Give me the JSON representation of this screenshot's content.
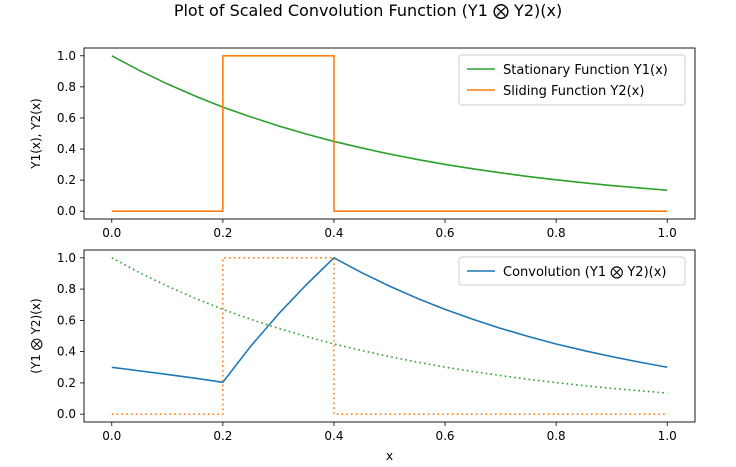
{
  "figure": {
    "title": "Plot of Scaled Convolution Function (Y1 ⨂ Y2)(x)"
  },
  "colors": {
    "stationary": "#2ca02c",
    "sliding": "#ff7f0e",
    "convolution": "#1f77b4"
  },
  "chart_data": [
    {
      "type": "line",
      "title": "",
      "xlabel": "",
      "ylabel": "Y1(x), Y2(x)",
      "xlim": [
        -0.05,
        1.05
      ],
      "ylim": [
        -0.05,
        1.05
      ],
      "xticks": [
        "0.0",
        "0.2",
        "0.4",
        "0.6",
        "0.8",
        "1.0"
      ],
      "yticks": [
        "0.0",
        "0.2",
        "0.4",
        "0.6",
        "0.8",
        "1.0"
      ],
      "legend_position": "top-right",
      "x": [
        0.0,
        0.05,
        0.1,
        0.15,
        0.2,
        0.25,
        0.3,
        0.35,
        0.4,
        0.45,
        0.5,
        0.55,
        0.6,
        0.65,
        0.7,
        0.75,
        0.8,
        0.85,
        0.9,
        0.95,
        1.0
      ],
      "series": [
        {
          "name": "Stationary Function Y1(x)",
          "color": "#2ca02c",
          "style": "solid",
          "values": [
            1.0,
            0.905,
            0.819,
            0.741,
            0.67,
            0.607,
            0.549,
            0.497,
            0.449,
            0.407,
            0.368,
            0.333,
            0.301,
            0.273,
            0.247,
            0.223,
            0.202,
            0.183,
            0.165,
            0.15,
            0.135
          ]
        },
        {
          "name": "Sliding Function Y2(x)",
          "color": "#ff7f0e",
          "style": "solid",
          "step_points": [
            [
              0.0,
              0.0
            ],
            [
              0.2,
              0.0
            ],
            [
              0.2,
              1.0
            ],
            [
              0.4,
              1.0
            ],
            [
              0.4,
              0.0
            ],
            [
              1.0,
              0.0
            ]
          ]
        }
      ]
    },
    {
      "type": "line",
      "title": "",
      "xlabel": "x",
      "ylabel": "(Y1 ⨂ Y2)(x)",
      "xlim": [
        -0.05,
        1.05
      ],
      "ylim": [
        -0.05,
        1.05
      ],
      "xticks": [
        "0.0",
        "0.2",
        "0.4",
        "0.6",
        "0.8",
        "1.0"
      ],
      "yticks": [
        "0.0",
        "0.2",
        "0.4",
        "0.6",
        "0.8",
        "1.0"
      ],
      "legend_position": "top-right",
      "x": [
        0.0,
        0.05,
        0.1,
        0.15,
        0.2,
        0.25,
        0.3,
        0.35,
        0.4,
        0.45,
        0.5,
        0.55,
        0.6,
        0.65,
        0.7,
        0.75,
        0.8,
        0.85,
        0.9,
        0.95,
        1.0
      ],
      "series": [
        {
          "name": "Convolution (Y1 ⨂ Y2)(x)",
          "color": "#1f77b4",
          "style": "solid",
          "values": [
            0.3,
            0.277,
            0.254,
            0.23,
            0.204,
            0.434,
            0.64,
            0.827,
            1.0,
            0.905,
            0.819,
            0.741,
            0.67,
            0.607,
            0.549,
            0.497,
            0.449,
            0.407,
            0.368,
            0.333,
            0.3
          ]
        },
        {
          "color": "#2ca02c",
          "style": "dotted",
          "values": [
            1.0,
            0.905,
            0.819,
            0.741,
            0.67,
            0.607,
            0.549,
            0.497,
            0.449,
            0.407,
            0.368,
            0.333,
            0.301,
            0.273,
            0.247,
            0.223,
            0.202,
            0.183,
            0.165,
            0.15,
            0.135
          ]
        },
        {
          "color": "#ff7f0e",
          "style": "dotted",
          "step_points": [
            [
              0.0,
              0.0
            ],
            [
              0.2,
              0.0
            ],
            [
              0.2,
              1.0
            ],
            [
              0.4,
              1.0
            ],
            [
              0.4,
              0.0
            ],
            [
              1.0,
              0.0
            ]
          ]
        }
      ]
    }
  ]
}
